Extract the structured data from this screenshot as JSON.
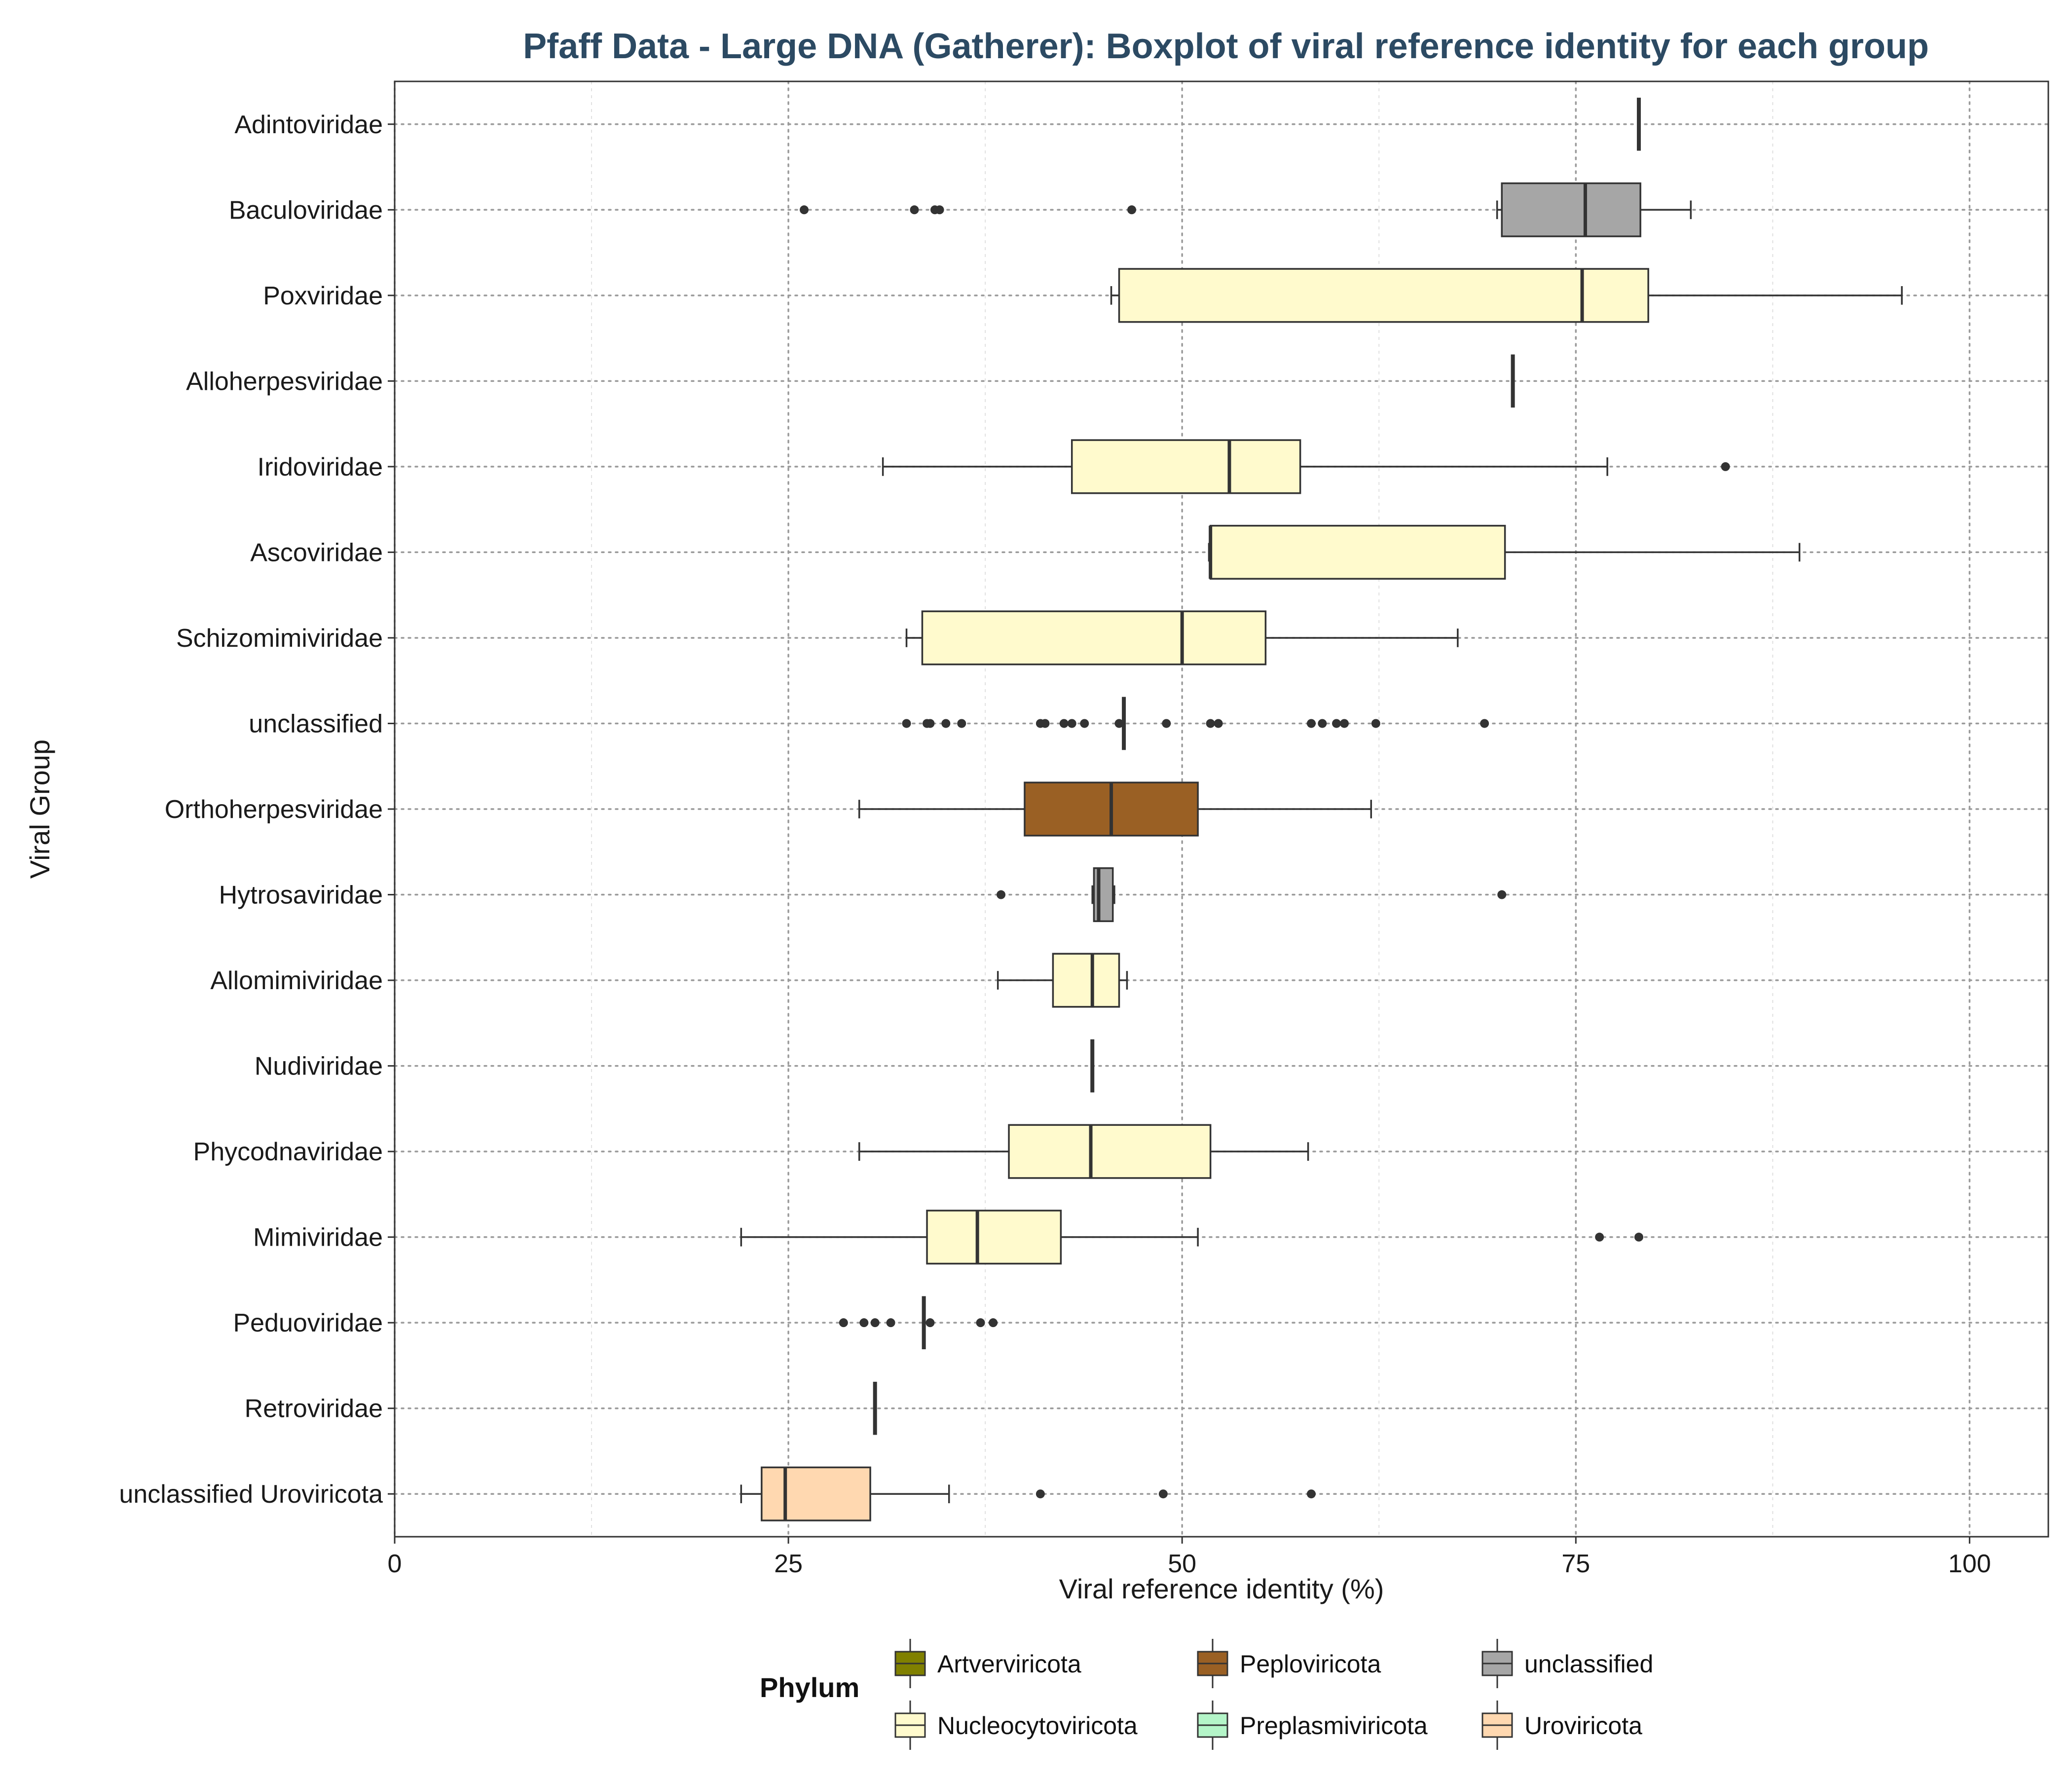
{
  "chart_data": {
    "type": "boxplot",
    "orientation": "horizontal",
    "title": "Pfaff Data - Large DNA (Gatherer): Boxplot of viral reference identity for each group",
    "xlabel": "Viral reference identity (%)",
    "ylabel": "Viral Group",
    "xlim": [
      0,
      105
    ],
    "xticks": [
      0,
      25,
      50,
      75,
      100
    ],
    "grid": true,
    "legend_placement": "bottom",
    "legend": {
      "title": "Phylum",
      "entries": [
        {
          "name": "Artverviricota",
          "color": "#808000"
        },
        {
          "name": "Nucleocytoviricota",
          "color": "#fffacd"
        },
        {
          "name": "Peploviricota",
          "color": "#9a6024"
        },
        {
          "name": "Preplasmiviricota",
          "color": "#b4f5c8"
        },
        {
          "name": "unclassified",
          "color": "#a6a6a6"
        },
        {
          "name": "Uroviricota",
          "color": "#ffd8b0"
        }
      ]
    },
    "groups": [
      {
        "name": "Adintoviridae",
        "phylum": "unclassified",
        "color": "#a6a6a6",
        "whisker_low": 79,
        "q1": 79,
        "median": 79,
        "q3": 79,
        "whisker_high": 79,
        "outliers": []
      },
      {
        "name": "Baculoviridae",
        "phylum": "unclassified",
        "color": "#a6a6a6",
        "whisker_low": 70,
        "q1": 70.3,
        "median": 75.6,
        "q3": 79.1,
        "whisker_high": 82.3,
        "outliers": [
          26,
          33,
          34.3,
          34.6,
          46.8
        ]
      },
      {
        "name": "Poxviridae",
        "phylum": "Nucleocytoviricota",
        "color": "#fffacd",
        "whisker_low": 45.5,
        "q1": 46,
        "median": 75.4,
        "q3": 79.6,
        "whisker_high": 95.7,
        "outliers": []
      },
      {
        "name": "Alloherpesviridae",
        "phylum": "unclassified",
        "color": "#a6a6a6",
        "whisker_low": 71,
        "q1": 71,
        "median": 71,
        "q3": 71,
        "whisker_high": 71,
        "outliers": []
      },
      {
        "name": "Iridoviridae",
        "phylum": "Nucleocytoviricota",
        "color": "#fffacd",
        "whisker_low": 31,
        "q1": 43,
        "median": 53,
        "q3": 57.5,
        "whisker_high": 77,
        "outliers": [
          84.5
        ]
      },
      {
        "name": "Ascoviridae",
        "phylum": "Nucleocytoviricota",
        "color": "#fffacd",
        "whisker_low": 51.7,
        "q1": 51.8,
        "median": 51.8,
        "q3": 70.5,
        "whisker_high": 89.2,
        "outliers": []
      },
      {
        "name": "Schizomimiviridae",
        "phylum": "Nucleocytoviricota",
        "color": "#fffacd",
        "whisker_low": 32.5,
        "q1": 33.5,
        "median": 50,
        "q3": 55.3,
        "whisker_high": 67.5,
        "outliers": []
      },
      {
        "name": "unclassified",
        "phylum": "unclassified",
        "color": "#a6a6a6",
        "whisker_low": 46.3,
        "q1": 46.3,
        "median": 46.3,
        "q3": 46.3,
        "whisker_high": 46.3,
        "outliers": [
          32.5,
          33.8,
          34,
          35,
          36,
          41,
          41.3,
          42.5,
          43,
          43.8,
          46,
          49,
          51.8,
          52.3,
          58.2,
          58.9,
          59.8,
          60.3,
          62.3,
          69.2
        ]
      },
      {
        "name": "Orthoherpesviridae",
        "phylum": "Peploviricota",
        "color": "#9a6024",
        "whisker_low": 29.5,
        "q1": 40,
        "median": 45.5,
        "q3": 51,
        "whisker_high": 62,
        "outliers": []
      },
      {
        "name": "Hytrosaviridae",
        "phylum": "unclassified",
        "color": "#a6a6a6",
        "whisker_low": 44.3,
        "q1": 44.4,
        "median": 44.7,
        "q3": 45.6,
        "whisker_high": 45.7,
        "outliers": [
          38.5,
          70.3
        ]
      },
      {
        "name": "Allomimiviridae",
        "phylum": "Nucleocytoviricota",
        "color": "#fffacd",
        "whisker_low": 38.3,
        "q1": 41.8,
        "median": 44.3,
        "q3": 46,
        "whisker_high": 46.5,
        "outliers": []
      },
      {
        "name": "Nudiviridae",
        "phylum": "unclassified",
        "color": "#a6a6a6",
        "whisker_low": 44.3,
        "q1": 44.3,
        "median": 44.3,
        "q3": 44.3,
        "whisker_high": 44.3,
        "outliers": []
      },
      {
        "name": "Phycodnaviridae",
        "phylum": "Nucleocytoviricota",
        "color": "#fffacd",
        "whisker_low": 29.5,
        "q1": 39,
        "median": 44.2,
        "q3": 51.8,
        "whisker_high": 58,
        "outliers": []
      },
      {
        "name": "Mimiviridae",
        "phylum": "Nucleocytoviricota",
        "color": "#fffacd",
        "whisker_low": 22,
        "q1": 33.8,
        "median": 37,
        "q3": 42.3,
        "whisker_high": 51,
        "outliers": [
          76.5,
          79
        ]
      },
      {
        "name": "Peduoviridae",
        "phylum": "Uroviricota",
        "color": "#ffd8b0",
        "whisker_low": 33.6,
        "q1": 33.6,
        "median": 33.6,
        "q3": 33.6,
        "whisker_high": 33.6,
        "outliers": [
          28.5,
          29.8,
          30.5,
          31.5,
          34,
          37.2,
          38
        ]
      },
      {
        "name": "Retroviridae",
        "phylum": "Artverviricota",
        "color": "#808000",
        "whisker_low": 30.5,
        "q1": 30.5,
        "median": 30.5,
        "q3": 30.5,
        "whisker_high": 30.5,
        "outliers": []
      },
      {
        "name": "unclassified Uroviricota",
        "phylum": "Uroviricota",
        "color": "#ffd8b0",
        "whisker_low": 22,
        "q1": 23.3,
        "median": 24.8,
        "q3": 30.2,
        "whisker_high": 35.2,
        "outliers": [
          41,
          48.8,
          58.2
        ]
      }
    ]
  }
}
